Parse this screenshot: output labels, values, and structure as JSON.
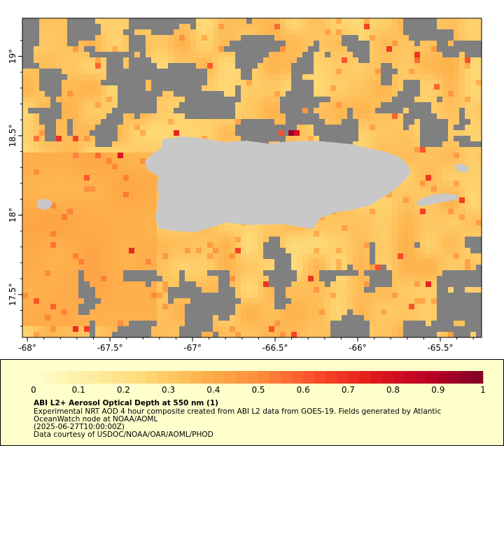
{
  "map": {
    "lon_ticks": [
      "-68°",
      "-67.5°",
      "-67°",
      "-66.5°",
      "-66°",
      "-65.5°"
    ],
    "lon_values": [
      -68,
      -67.5,
      -67,
      -66.5,
      -66,
      -65.5
    ],
    "lat_ticks": [
      "19°",
      "18.5°",
      "18°",
      "17.5°"
    ],
    "lat_values": [
      19,
      18.5,
      18,
      17.5
    ],
    "lon_range": [
      -68.03,
      -65.25
    ],
    "lat_range": [
      17.23,
      19.24
    ],
    "colors": {
      "no_data": "#808080",
      "land": "#c8c8c8",
      "aod_low": "#fee6a8",
      "aod_mid": "#fdae61",
      "aod_high": "#e31a1c",
      "aod_max": "#800026"
    },
    "features": [
      "Puerto Rico",
      "Vieques",
      "Mona Island",
      "Culebra"
    ]
  },
  "colorbar": {
    "ticks": [
      "0",
      "0.1",
      "0.2",
      "0.3",
      "0.4",
      "0.5",
      "0.6",
      "0.7",
      "0.8",
      "0.9",
      "1"
    ],
    "min": 0,
    "max": 1,
    "colors": [
      "#ffffcc",
      "#feeda0",
      "#fed976",
      "#feb24c",
      "#fd8d3c",
      "#fc4e2a",
      "#e31a1c",
      "#bd0026",
      "#800026"
    ]
  },
  "legend": {
    "title": "ABI L2+ Aerosol Optical Depth at 550 nm (1)",
    "line1": "Experimental NRT AOD 4 hour composite created from ABI L2 data from GOES-19. Fields generated by Atlantic",
    "line2": "OceanWatch node at NOAA/AOML",
    "line3": "(2025-06-27T10:00:00Z)",
    "line4": "Data courtesy of USDOC/NOAA/OAR/AOML/PHOD"
  }
}
